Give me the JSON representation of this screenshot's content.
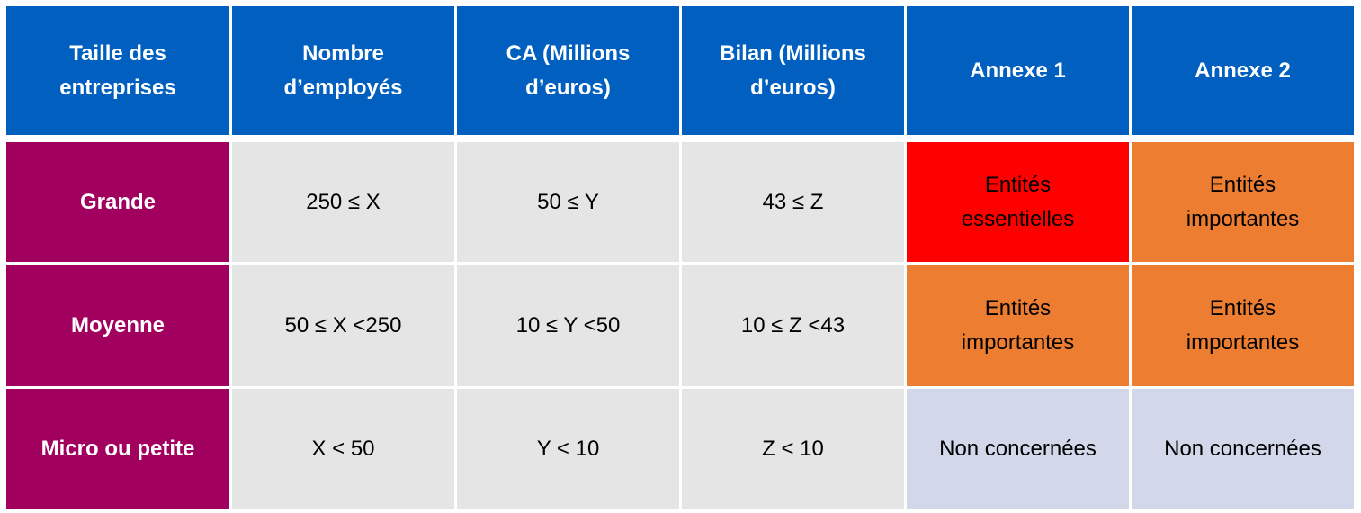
{
  "header": [
    "Taille des\nentreprises",
    "Nombre\nd’employés",
    "CA (Millions\nd’euros)",
    "Bilan (Millions\nd’euros)",
    "Annexe 1",
    "Annexe 2"
  ],
  "rows": [
    {
      "size": "Grande",
      "employes": "250 ≤ X",
      "ca": "50 ≤ Y",
      "bilan": "43 ≤ Z",
      "annexe1": "Entités\nessentielles",
      "annexe2": "Entités\nimportantes"
    },
    {
      "size": "Moyenne",
      "employes": "50 ≤ X <250",
      "ca": "10 ≤ Y <50",
      "bilan": "10 ≤ Z <43",
      "annexe1": "Entités\nimportantes",
      "annexe2": "Entités\nimportantes"
    },
    {
      "size": "Micro ou petite",
      "employes": "X < 50",
      "ca": "Y < 10",
      "bilan": "Z < 10",
      "annexe1": "Non concernées",
      "annexe2": "Non concernées"
    }
  ],
  "colors": {
    "header": "#0160BF",
    "size": "#A1005F",
    "value": "#E5E5E5",
    "essentielles": "#FF0000",
    "importantes": "#ED7D31",
    "non_concernees": "#D3D7EA"
  }
}
